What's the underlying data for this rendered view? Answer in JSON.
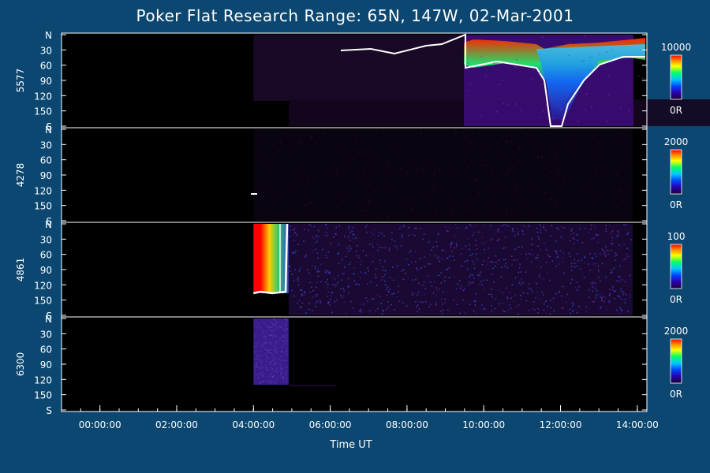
{
  "title": "Poker Flat Research Range: 65N, 147W, 02-Mar-2001",
  "chart_data": {
    "type": "heatmap",
    "title": "Poker Flat Research Range: 65N, 147W, 02-Mar-2001",
    "xlabel": "Time UT",
    "xlim": [
      "23:00:00",
      "14:15:00"
    ],
    "x_ticks": [
      "00:00:00",
      "02:00:00",
      "04:00:00",
      "06:00:00",
      "08:00:00",
      "10:00:00",
      "12:00:00",
      "14:00:00"
    ],
    "y_ticks": [
      "N",
      "30",
      "60",
      "90",
      "120",
      "150",
      "S"
    ],
    "ylim": [
      0,
      180
    ],
    "colorbar_unit": "0R",
    "panels": [
      {
        "name": "5577",
        "colorbar_max": "10000",
        "colorbar_min": "0R"
      },
      {
        "name": "4278",
        "colorbar_max": "2000",
        "colorbar_min": "0R"
      },
      {
        "name": "4861",
        "colorbar_max": "100",
        "colorbar_min": "0R"
      },
      {
        "name": "6300",
        "colorbar_max": "2000",
        "colorbar_min": "0R"
      }
    ]
  }
}
